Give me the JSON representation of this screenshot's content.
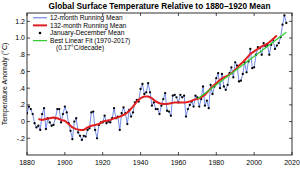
{
  "chart_data": {
    "type": "line",
    "title": "Global Surface Temperature Relative to 1880–1920 Mean",
    "y_label": "Temperature Anomaly (°C)",
    "xlim": [
      1880,
      2020
    ],
    "xticks": [
      1880,
      1900,
      1920,
      1940,
      1960,
      1980,
      2000,
      2020
    ],
    "ylim": [
      -0.4,
      1.3
    ],
    "yticks": [
      {
        "value": -0.2,
        "label": "-.2"
      },
      0,
      {
        "value": 0.2,
        "label": ".2"
      },
      {
        "value": 0.4,
        "label": ".4"
      },
      {
        "value": 0.6,
        "label": ".6"
      },
      {
        "value": 0.8,
        "label": ".8"
      },
      {
        "value": 1.0,
        "label": "1.0"
      },
      1.2
    ],
    "grid": false,
    "legend": "upper left",
    "annotations": [
      "(0.17°C/decade)"
    ],
    "series": [
      {
        "name": "12-month Running Mean",
        "type": "line",
        "color": "#4f6fe0",
        "line_style": "solid",
        "x": [
          1880,
          1881,
          1882,
          1883,
          1884,
          1885,
          1886,
          1887,
          1888,
          1889,
          1890,
          1891,
          1892,
          1893,
          1894,
          1895,
          1896,
          1897,
          1898,
          1899,
          1900,
          1901,
          1902,
          1903,
          1904,
          1905,
          1906,
          1907,
          1908,
          1909,
          1910,
          1911,
          1912,
          1913,
          1914,
          1915,
          1916,
          1917,
          1918,
          1919,
          1920,
          1921,
          1922,
          1923,
          1924,
          1925,
          1926,
          1927,
          1928,
          1929,
          1930,
          1931,
          1932,
          1933,
          1934,
          1935,
          1936,
          1937,
          1938,
          1939,
          1940,
          1941,
          1942,
          1943,
          1944,
          1945,
          1946,
          1947,
          1948,
          1949,
          1950,
          1951,
          1952,
          1953,
          1954,
          1955,
          1956,
          1957,
          1958,
          1959,
          1960,
          1961,
          1962,
          1963,
          1964,
          1965,
          1966,
          1967,
          1968,
          1969,
          1970,
          1971,
          1972,
          1973,
          1974,
          1975,
          1976,
          1977,
          1978,
          1979,
          1980,
          1981,
          1982,
          1983,
          1984,
          1985,
          1986,
          1987,
          1988,
          1989,
          1990,
          1991,
          1992,
          1993,
          1994,
          1995,
          1996,
          1997,
          1998,
          1999,
          2000,
          2001,
          2002,
          2003,
          2004,
          2005,
          2006,
          2007,
          2008,
          2009,
          2010,
          2011,
          2012,
          2013,
          2014,
          2015,
          2016,
          2017
        ],
        "values": [
          0.1,
          0.18,
          0.15,
          0.09,
          -0.02,
          -0.07,
          -0.05,
          -0.1,
          0.09,
          0.16,
          -0.09,
          0.04,
          -0.01,
          -0.05,
          -0.04,
          0.04,
          0.15,
          0.15,
          -0.01,
          0.09,
          0.18,
          0.11,
          -0.02,
          -0.11,
          -0.21,
          0.0,
          0.04,
          -0.13,
          -0.17,
          -0.22,
          -0.17,
          -0.18,
          -0.1,
          -0.08,
          0.11,
          0.12,
          -0.1,
          -0.2,
          -0.04,
          -0.01,
          -0.01,
          0.07,
          -0.02,
          0.0,
          -0.01,
          0.04,
          0.16,
          0.04,
          0.06,
          -0.1,
          0.1,
          0.17,
          0.1,
          -0.03,
          0.14,
          0.06,
          0.11,
          0.23,
          0.26,
          0.24,
          0.39,
          0.45,
          0.33,
          0.35,
          0.46,
          0.35,
          0.19,
          0.23,
          0.15,
          0.15,
          0.09,
          0.19,
          0.27,
          0.34,
          0.13,
          0.12,
          0.07,
          0.31,
          0.32,
          0.29,
          0.23,
          0.32,
          0.29,
          0.31,
          0.06,
          0.15,
          0.2,
          0.24,
          0.18,
          0.31,
          0.29,
          0.18,
          0.27,
          0.42,
          0.19,
          0.25,
          0.16,
          0.44,
          0.33,
          0.42,
          0.52,
          0.58,
          0.4,
          0.57,
          0.42,
          0.38,
          0.44,
          0.58,
          0.65,
          0.53,
          0.71,
          0.67,
          0.48,
          0.49,
          0.57,
          0.71,
          0.59,
          0.72,
          0.87,
          0.64,
          0.65,
          0.8,
          0.89,
          0.88,
          0.8,
          0.94,
          0.9,
          0.92,
          0.8,
          0.92,
          0.98,
          0.87,
          0.91,
          0.94,
          1.01,
          1.16,
          1.27,
          1.18
        ]
      },
      {
        "name": "132-month Running Mean",
        "type": "line",
        "color": "#e02020",
        "line_style": "solid",
        "x": [
          1886,
          1888,
          1890,
          1892,
          1894,
          1896,
          1898,
          1900,
          1902,
          1904,
          1906,
          1908,
          1910,
          1912,
          1914,
          1916,
          1918,
          1920,
          1922,
          1924,
          1926,
          1928,
          1930,
          1932,
          1934,
          1936,
          1938,
          1940,
          1942,
          1944,
          1946,
          1948,
          1950,
          1952,
          1954,
          1956,
          1958,
          1960,
          1962,
          1964,
          1966,
          1968,
          1970,
          1972,
          1974,
          1976,
          1978,
          1980,
          1982,
          1984,
          1986,
          1988,
          1990,
          1992,
          1994,
          1996,
          1998,
          2000,
          2002,
          2004,
          2006,
          2008,
          2010,
          2012
        ],
        "values": [
          0.03,
          0.02,
          0.03,
          0.04,
          0.05,
          0.04,
          0.02,
          0.01,
          -0.03,
          -0.07,
          -0.09,
          -0.1,
          -0.1,
          -0.07,
          -0.05,
          -0.04,
          -0.03,
          0.0,
          0.01,
          0.02,
          0.04,
          0.05,
          0.07,
          0.09,
          0.13,
          0.18,
          0.24,
          0.28,
          0.3,
          0.3,
          0.28,
          0.24,
          0.22,
          0.21,
          0.21,
          0.22,
          0.23,
          0.23,
          0.23,
          0.23,
          0.24,
          0.26,
          0.27,
          0.29,
          0.32,
          0.37,
          0.42,
          0.46,
          0.5,
          0.53,
          0.55,
          0.58,
          0.62,
          0.67,
          0.71,
          0.76,
          0.81,
          0.84,
          0.87,
          0.9,
          0.92,
          0.95,
          0.99,
          1.03
        ]
      },
      {
        "name": "January-December Mean",
        "type": "scatter",
        "color": "#000000",
        "marker": "circle",
        "x": [
          1880,
          1881,
          1882,
          1883,
          1884,
          1885,
          1886,
          1887,
          1888,
          1889,
          1890,
          1891,
          1892,
          1893,
          1894,
          1895,
          1896,
          1897,
          1898,
          1899,
          1900,
          1901,
          1902,
          1903,
          1904,
          1905,
          1906,
          1907,
          1908,
          1909,
          1910,
          1911,
          1912,
          1913,
          1914,
          1915,
          1916,
          1917,
          1918,
          1919,
          1920,
          1921,
          1922,
          1923,
          1924,
          1925,
          1926,
          1927,
          1928,
          1929,
          1930,
          1931,
          1932,
          1933,
          1934,
          1935,
          1936,
          1937,
          1938,
          1939,
          1940,
          1941,
          1942,
          1943,
          1944,
          1945,
          1946,
          1947,
          1948,
          1949,
          1950,
          1951,
          1952,
          1953,
          1954,
          1955,
          1956,
          1957,
          1958,
          1959,
          1960,
          1961,
          1962,
          1963,
          1964,
          1965,
          1966,
          1967,
          1968,
          1969,
          1970,
          1971,
          1972,
          1973,
          1974,
          1975,
          1976,
          1977,
          1978,
          1979,
          1980,
          1981,
          1982,
          1983,
          1984,
          1985,
          1986,
          1987,
          1988,
          1989,
          1990,
          1991,
          1992,
          1993,
          1994,
          1995,
          1996,
          1997,
          1998,
          1999,
          2000,
          2001,
          2002,
          2003,
          2004,
          2005,
          2006,
          2007,
          2008,
          2009,
          2010,
          2011,
          2012,
          2013,
          2014,
          2015,
          2016,
          2017
        ],
        "values": [
          0.1,
          0.18,
          0.15,
          0.09,
          -0.02,
          -0.07,
          -0.05,
          -0.1,
          0.09,
          0.16,
          -0.09,
          0.04,
          -0.01,
          -0.05,
          -0.04,
          0.04,
          0.15,
          0.15,
          -0.01,
          0.09,
          0.18,
          0.11,
          -0.02,
          -0.11,
          -0.21,
          0.0,
          0.04,
          -0.13,
          -0.17,
          -0.22,
          -0.17,
          -0.18,
          -0.1,
          -0.08,
          0.11,
          0.12,
          -0.1,
          -0.2,
          -0.04,
          -0.01,
          -0.01,
          0.07,
          -0.02,
          0.0,
          -0.01,
          0.04,
          0.16,
          0.04,
          0.06,
          -0.1,
          0.1,
          0.17,
          0.1,
          -0.03,
          0.14,
          0.06,
          0.11,
          0.23,
          0.26,
          0.24,
          0.39,
          0.45,
          0.33,
          0.35,
          0.46,
          0.35,
          0.19,
          0.23,
          0.15,
          0.15,
          0.09,
          0.19,
          0.27,
          0.34,
          0.13,
          0.12,
          0.07,
          0.31,
          0.32,
          0.29,
          0.23,
          0.32,
          0.29,
          0.31,
          0.06,
          0.15,
          0.2,
          0.24,
          0.18,
          0.31,
          0.29,
          0.18,
          0.27,
          0.42,
          0.19,
          0.25,
          0.16,
          0.44,
          0.33,
          0.42,
          0.52,
          0.58,
          0.4,
          0.57,
          0.42,
          0.38,
          0.44,
          0.58,
          0.65,
          0.53,
          0.71,
          0.67,
          0.48,
          0.49,
          0.57,
          0.71,
          0.59,
          0.72,
          0.87,
          0.64,
          0.65,
          0.8,
          0.89,
          0.88,
          0.8,
          0.94,
          0.9,
          0.92,
          0.8,
          0.92,
          0.98,
          0.87,
          0.91,
          0.94,
          1.01,
          1.16,
          1.27,
          1.18
        ]
      },
      {
        "name": "Best Linear Fit (1970-2017)",
        "type": "line",
        "color": "#33cc33",
        "line_style": "solid",
        "x": [
          1970,
          2017
        ],
        "values": [
          0.27,
          1.07
        ]
      }
    ]
  }
}
